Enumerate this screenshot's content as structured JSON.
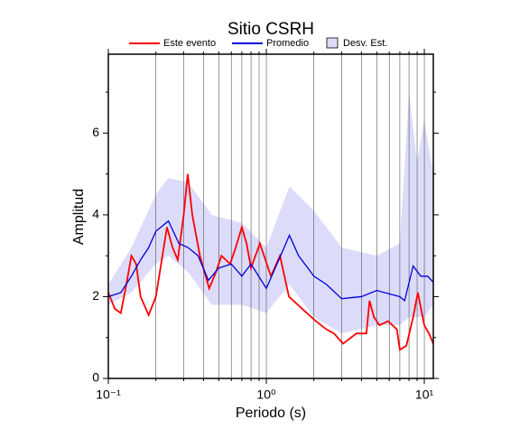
{
  "chart_data": {
    "type": "line",
    "title": "Sitio CSRH",
    "xlabel": "Periodo (s)",
    "ylabel": "Amplitud",
    "xscale": "log",
    "xlim": [
      0.1,
      11.4
    ],
    "ylim": [
      0,
      7.93
    ],
    "xticks": [
      {
        "value": 0.1,
        "label": "10⁻¹"
      },
      {
        "value": 1,
        "label": "10⁰"
      },
      {
        "value": 10,
        "label": "10¹"
      }
    ],
    "xminor_ticks": [
      0.2,
      0.3,
      0.4,
      0.5,
      0.6,
      0.7,
      0.8,
      0.9,
      2,
      3,
      4,
      5,
      6,
      7,
      8,
      9
    ],
    "yticks": [
      0,
      2,
      4,
      6
    ],
    "yminor_ticks": [
      1,
      3,
      5,
      7
    ],
    "grid": "x",
    "series": [
      {
        "name": "Este evento",
        "color": "#ff0000",
        "kind": "line",
        "x": [
          0.1,
          0.11,
          0.12,
          0.13,
          0.14,
          0.15,
          0.16,
          0.18,
          0.2,
          0.22,
          0.235,
          0.255,
          0.275,
          0.3,
          0.318,
          0.34,
          0.38,
          0.435,
          0.48,
          0.52,
          0.59,
          0.64,
          0.7,
          0.75,
          0.8,
          0.91,
          1.07,
          1.22,
          1.39,
          1.69,
          2.06,
          2.4,
          2.68,
          3.06,
          3.72,
          4.3,
          4.5,
          4.8,
          5.2,
          5.9,
          6.7,
          7.0,
          7.7,
          8.5,
          9.1,
          10,
          10.7,
          11.4
        ],
        "values": [
          2.1,
          1.7,
          1.6,
          2.3,
          3.0,
          2.8,
          2.0,
          1.55,
          2.0,
          3.0,
          3.7,
          3.2,
          2.9,
          4.0,
          5.0,
          4.0,
          3.0,
          2.2,
          2.6,
          3.0,
          2.8,
          3.2,
          3.7,
          3.3,
          2.7,
          3.3,
          2.5,
          3.0,
          2.0,
          1.7,
          1.4,
          1.2,
          1.1,
          0.85,
          1.1,
          1.1,
          1.9,
          1.5,
          1.3,
          1.4,
          1.2,
          0.7,
          0.8,
          1.5,
          2.1,
          1.3,
          1.1,
          0.85
        ]
      },
      {
        "name": "Promedio",
        "color": "#0000dd",
        "kind": "line",
        "x": [
          0.1,
          0.12,
          0.14,
          0.16,
          0.18,
          0.2,
          0.24,
          0.28,
          0.32,
          0.37,
          0.43,
          0.5,
          0.6,
          0.7,
          0.8,
          1.0,
          1.2,
          1.4,
          1.6,
          2.0,
          2.4,
          3.0,
          4.0,
          5.0,
          7.0,
          7.5,
          8.5,
          9.5,
          10.5,
          11.4
        ],
        "values": [
          2.0,
          2.1,
          2.5,
          2.9,
          3.2,
          3.6,
          3.85,
          3.3,
          3.2,
          3.0,
          2.4,
          2.7,
          2.8,
          2.5,
          2.8,
          2.2,
          2.9,
          3.5,
          3.0,
          2.5,
          2.3,
          1.95,
          2.0,
          2.15,
          2.0,
          1.9,
          2.75,
          2.5,
          2.5,
          2.35
        ]
      },
      {
        "name": "Desv. Est.",
        "color": "#dcdcfa",
        "kind": "band",
        "x": [
          0.1,
          0.14,
          0.2,
          0.24,
          0.32,
          0.45,
          0.7,
          1.0,
          1.4,
          2.0,
          3.0,
          5.0,
          7.0,
          8.0,
          9.0,
          10.0,
          11.4
        ],
        "lower": [
          1.8,
          2.1,
          2.8,
          3.0,
          2.6,
          1.8,
          1.8,
          1.6,
          2.3,
          1.5,
          1.1,
          1.3,
          1.3,
          1.5,
          1.5,
          1.5,
          1.8
        ],
        "upper": [
          2.3,
          3.2,
          4.5,
          4.9,
          4.8,
          4.0,
          3.8,
          3.2,
          4.7,
          4.1,
          3.2,
          3.0,
          3.3,
          7.0,
          5.3,
          6.3,
          5.0
        ]
      }
    ]
  }
}
